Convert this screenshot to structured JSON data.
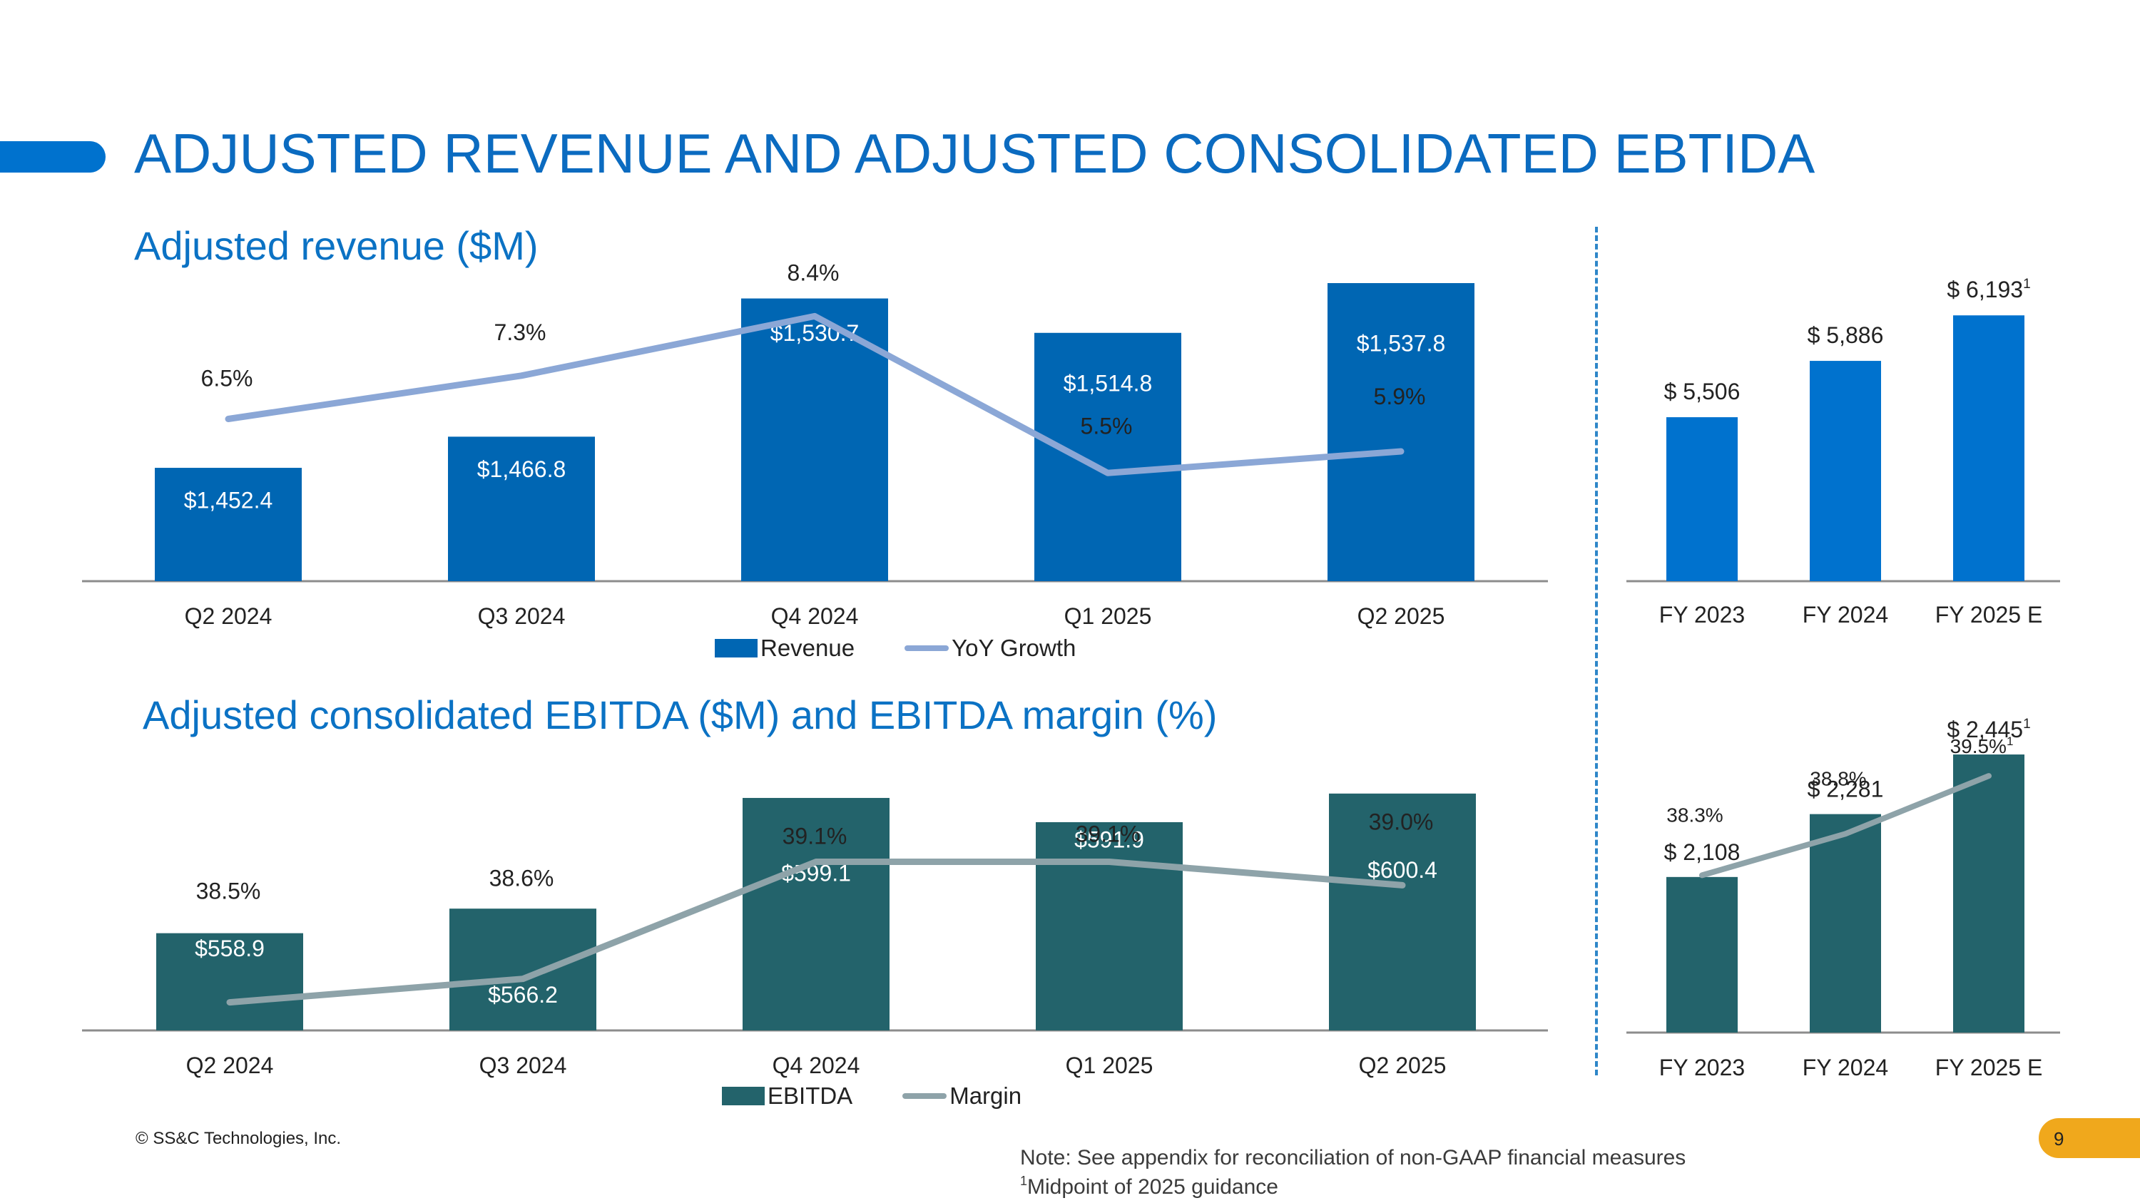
{
  "slide_title": "ADJUSTED REVENUE AND ADJUSTED CONSOLIDATED EBTIDA",
  "footer": {
    "copyright": "© SS&C Technologies, Inc.",
    "note_line1": "Note: See appendix for reconciliation of non-GAAP financial measures",
    "note_sup": "1",
    "note_line2": "Midpoint of 2025 guidance",
    "page_number": "9"
  },
  "colors": {
    "title": "#0B6BC0",
    "revenue_bar": "#0066B3",
    "revenue_line": "#8BA7D6",
    "annual_revenue_bar": "#0072CE",
    "ebitda_bar": "#23636B",
    "ebitda_line": "#8EA3A9",
    "page_badge": "#F0A81C"
  },
  "chart_data": [
    {
      "id": "revenue",
      "type": "bar",
      "title": "Adjusted revenue ($M)",
      "categories": [
        "Q2 2024",
        "Q3 2024",
        "Q4 2024",
        "Q1 2025",
        "Q2 2025"
      ],
      "series": [
        {
          "name": "Revenue",
          "kind": "bar",
          "values": [
            1452.4,
            1466.8,
            1530.7,
            1514.8,
            1537.8
          ],
          "labels": [
            "$1,452.4",
            "$1,466.8",
            "$1,530.7",
            "$1,514.8",
            "$1,537.8"
          ]
        },
        {
          "name": "YoY Growth",
          "kind": "line",
          "values": [
            6.5,
            7.3,
            8.4,
            5.5,
            5.9
          ],
          "labels": [
            "6.5%",
            "7.3%",
            "8.4%",
            "5.5%",
            "5.9%"
          ]
        }
      ],
      "ylim": [
        1400,
        1550
      ],
      "line_ylim": [
        3.5,
        9.5
      ],
      "legend": "bottom"
    },
    {
      "id": "revenue_annual",
      "type": "bar",
      "categories": [
        "FY 2023",
        "FY 2024",
        "FY 2025 E"
      ],
      "values": [
        5506,
        5886,
        6193
      ],
      "labels": [
        "$ 5,506",
        "$ 5,886",
        "$ 6,193"
      ],
      "footnote_marks": [
        "",
        "",
        "1"
      ],
      "ylim": [
        4400,
        6300
      ]
    },
    {
      "id": "ebitda",
      "type": "bar",
      "title": "Adjusted consolidated EBITDA ($M) and EBITDA margin (%)",
      "categories": [
        "Q2 2024",
        "Q3 2024",
        "Q4 2024",
        "Q1 2025",
        "Q2 2025"
      ],
      "series": [
        {
          "name": "EBITDA",
          "kind": "bar",
          "values": [
            558.9,
            566.2,
            599.1,
            591.9,
            600.4
          ],
          "labels": [
            "$558.9",
            "$566.2",
            "$599.1",
            "$591.9",
            "$600.4"
          ]
        },
        {
          "name": "Margin",
          "kind": "line",
          "values": [
            38.5,
            38.6,
            39.1,
            39.1,
            39.0
          ],
          "labels": [
            "38.5%",
            "38.6%",
            "39.1%",
            "39.1%",
            "39.0%"
          ]
        }
      ],
      "ylim": [
        530,
        601
      ],
      "line_ylim": [
        38.38,
        39.4
      ],
      "legend": "bottom"
    },
    {
      "id": "ebitda_annual",
      "type": "bar",
      "categories": [
        "FY 2023",
        "FY 2024",
        "FY 2025 E"
      ],
      "series": [
        {
          "name": "EBITDA",
          "kind": "bar",
          "values": [
            2108,
            2281,
            2445
          ],
          "labels": [
            "$ 2,108",
            "$ 2,281",
            "$ 2,445"
          ],
          "footnote_marks": [
            "",
            "",
            "1"
          ]
        },
        {
          "name": "Margin",
          "kind": "line",
          "values": [
            38.3,
            38.8,
            39.5
          ],
          "labels": [
            "38.3%",
            "38.8%",
            "39.5%"
          ],
          "footnote_marks": [
            "",
            "",
            "1"
          ]
        }
      ],
      "ylim": [
        1680,
        2500
      ],
      "line_ylim": [
        36.4,
        40.0
      ]
    }
  ]
}
